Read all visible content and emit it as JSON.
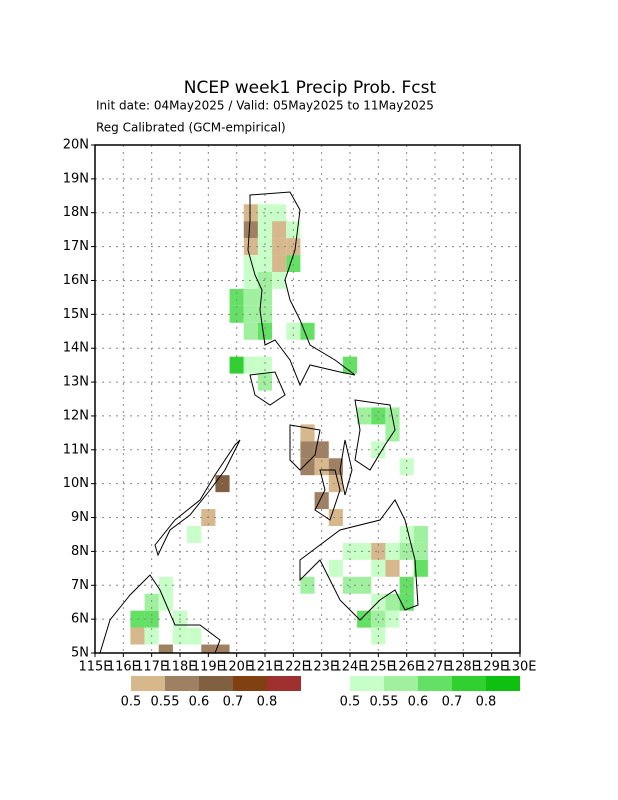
{
  "chart_data": {
    "type": "grid-map",
    "title": "NCEP week1 Precip Prob. Fcst",
    "subtitle": "Init date: 04May2025 / Valid: 05May2025 to 11May2025",
    "subtitle2": "Reg Calibrated (GCM-empirical)",
    "xlim": [
      115,
      130
    ],
    "ylim": [
      5,
      20
    ],
    "cell_size": 0.5,
    "grid": true,
    "xticks": [
      {
        "value": 115,
        "label": "115E"
      },
      {
        "value": 116,
        "label": "116E"
      },
      {
        "value": 117,
        "label": "117E"
      },
      {
        "value": 118,
        "label": "118E"
      },
      {
        "value": 119,
        "label": "119E"
      },
      {
        "value": 120,
        "label": "120E"
      },
      {
        "value": 121,
        "label": "121E"
      },
      {
        "value": 122,
        "label": "122E"
      },
      {
        "value": 123,
        "label": "123E"
      },
      {
        "value": 124,
        "label": "124E"
      },
      {
        "value": 125,
        "label": "125E"
      },
      {
        "value": 126,
        "label": "126E"
      },
      {
        "value": 127,
        "label": "127E"
      },
      {
        "value": 128,
        "label": "128E"
      },
      {
        "value": 129,
        "label": "129E"
      },
      {
        "value": 130,
        "label": "130E"
      }
    ],
    "yticks": [
      {
        "value": 5,
        "label": "5N"
      },
      {
        "value": 6,
        "label": "6N"
      },
      {
        "value": 7,
        "label": "7N"
      },
      {
        "value": 8,
        "label": "8N"
      },
      {
        "value": 9,
        "label": "9N"
      },
      {
        "value": 10,
        "label": "10N"
      },
      {
        "value": 11,
        "label": "11N"
      },
      {
        "value": 12,
        "label": "12N"
      },
      {
        "value": 13,
        "label": "13N"
      },
      {
        "value": 14,
        "label": "14N"
      },
      {
        "value": 15,
        "label": "15N"
      },
      {
        "value": 16,
        "label": "16N"
      },
      {
        "value": 17,
        "label": "17N"
      },
      {
        "value": 18,
        "label": "18N"
      },
      {
        "value": 19,
        "label": "19N"
      },
      {
        "value": 20,
        "label": "20N"
      }
    ],
    "legend": [
      {
        "colors": [
          "#d6b88c",
          "#a08062",
          "#806040",
          "#804012",
          "#a03030"
        ],
        "labels": [
          "0.5",
          "0.55",
          "0.6",
          "0.7",
          "0.8"
        ]
      },
      {
        "colors": [
          "#c8ffc8",
          "#a0f0a0",
          "#64e064",
          "#30d030",
          "#10c010"
        ],
        "labels": [
          "0.5",
          "0.55",
          "0.6",
          "0.7",
          "0.8"
        ]
      }
    ],
    "cells": [
      {
        "lon": 120.25,
        "lat": 17.75,
        "color": "#d6b88c"
      },
      {
        "lon": 120.75,
        "lat": 17.75,
        "color": "#c8ffc8"
      },
      {
        "lon": 121.25,
        "lat": 17.75,
        "color": "#c8ffc8"
      },
      {
        "lon": 120.25,
        "lat": 17.25,
        "color": "#a08062"
      },
      {
        "lon": 120.75,
        "lat": 17.25,
        "color": "#c8ffc8"
      },
      {
        "lon": 121.25,
        "lat": 17.25,
        "color": "#d6b88c"
      },
      {
        "lon": 121.75,
        "lat": 17.25,
        "color": "#c8ffc8"
      },
      {
        "lon": 120.25,
        "lat": 16.75,
        "color": "#d6b88c"
      },
      {
        "lon": 120.75,
        "lat": 16.75,
        "color": "#c8ffc8"
      },
      {
        "lon": 121.25,
        "lat": 16.75,
        "color": "#d6b88c"
      },
      {
        "lon": 121.75,
        "lat": 16.75,
        "color": "#d6b88c"
      },
      {
        "lon": 120.25,
        "lat": 16.25,
        "color": "#c8ffc8"
      },
      {
        "lon": 120.75,
        "lat": 16.25,
        "color": "#c8ffc8"
      },
      {
        "lon": 121.25,
        "lat": 16.25,
        "color": "#d6b88c"
      },
      {
        "lon": 121.75,
        "lat": 16.25,
        "color": "#64e064"
      },
      {
        "lon": 120.25,
        "lat": 15.75,
        "color": "#c8ffc8"
      },
      {
        "lon": 120.75,
        "lat": 15.75,
        "color": "#a0f0a0"
      },
      {
        "lon": 121.25,
        "lat": 15.75,
        "color": "#c8ffc8"
      },
      {
        "lon": 119.75,
        "lat": 15.25,
        "color": "#64e064"
      },
      {
        "lon": 120.25,
        "lat": 15.25,
        "color": "#a0f0a0"
      },
      {
        "lon": 120.75,
        "lat": 15.25,
        "color": "#a0f0a0"
      },
      {
        "lon": 119.75,
        "lat": 14.75,
        "color": "#64e064"
      },
      {
        "lon": 120.25,
        "lat": 14.75,
        "color": "#a0f0a0"
      },
      {
        "lon": 120.75,
        "lat": 14.75,
        "color": "#a0f0a0"
      },
      {
        "lon": 120.25,
        "lat": 14.25,
        "color": "#a0f0a0"
      },
      {
        "lon": 120.75,
        "lat": 14.25,
        "color": "#64e064"
      },
      {
        "lon": 121.75,
        "lat": 14.25,
        "color": "#c8ffc8"
      },
      {
        "lon": 122.25,
        "lat": 14.25,
        "color": "#64e064"
      },
      {
        "lon": 119.75,
        "lat": 13.25,
        "color": "#30d030"
      },
      {
        "lon": 120.25,
        "lat": 13.25,
        "color": "#c8ffc8"
      },
      {
        "lon": 120.75,
        "lat": 13.25,
        "color": "#c8ffc8"
      },
      {
        "lon": 123.75,
        "lat": 13.25,
        "color": "#64e064"
      },
      {
        "lon": 120.75,
        "lat": 12.75,
        "color": "#a0f0a0"
      },
      {
        "lon": 122.25,
        "lat": 11.25,
        "color": "#d6b88c"
      },
      {
        "lon": 122.25,
        "lat": 10.75,
        "color": "#a08062"
      },
      {
        "lon": 122.75,
        "lat": 10.75,
        "color": "#a08062"
      },
      {
        "lon": 122.25,
        "lat": 10.25,
        "color": "#a08062"
      },
      {
        "lon": 122.75,
        "lat": 10.25,
        "color": "#d6b88c"
      },
      {
        "lon": 123.25,
        "lat": 10.25,
        "color": "#a08062"
      },
      {
        "lon": 123.25,
        "lat": 9.75,
        "color": "#d6b88c"
      },
      {
        "lon": 122.75,
        "lat": 9.25,
        "color": "#a08062"
      },
      {
        "lon": 123.25,
        "lat": 8.75,
        "color": "#d6b88c"
      },
      {
        "lon": 124.25,
        "lat": 11.75,
        "color": "#a0f0a0"
      },
      {
        "lon": 124.75,
        "lat": 11.75,
        "color": "#64e064"
      },
      {
        "lon": 125.25,
        "lat": 11.75,
        "color": "#a0f0a0"
      },
      {
        "lon": 125.25,
        "lat": 11.25,
        "color": "#a0f0a0"
      },
      {
        "lon": 124.75,
        "lat": 10.75,
        "color": "#c8ffc8"
      },
      {
        "lon": 125.75,
        "lat": 10.25,
        "color": "#c8ffc8"
      },
      {
        "lon": 119.25,
        "lat": 9.75,
        "color": "#806040"
      },
      {
        "lon": 118.75,
        "lat": 8.75,
        "color": "#d6b88c"
      },
      {
        "lon": 118.25,
        "lat": 8.25,
        "color": "#c8ffc8"
      },
      {
        "lon": 123.75,
        "lat": 7.75,
        "color": "#c8ffc8"
      },
      {
        "lon": 124.25,
        "lat": 7.75,
        "color": "#c8ffc8"
      },
      {
        "lon": 124.75,
        "lat": 7.75,
        "color": "#d6b88c"
      },
      {
        "lon": 125.25,
        "lat": 7.75,
        "color": "#c8ffc8"
      },
      {
        "lon": 125.75,
        "lat": 7.75,
        "color": "#a0f0a0"
      },
      {
        "lon": 123.25,
        "lat": 7.25,
        "color": "#c8ffc8"
      },
      {
        "lon": 124.75,
        "lat": 7.25,
        "color": "#c8ffc8"
      },
      {
        "lon": 125.25,
        "lat": 7.25,
        "color": "#d6b88c"
      },
      {
        "lon": 126.25,
        "lat": 7.25,
        "color": "#64e064"
      },
      {
        "lon": 126.25,
        "lat": 7.75,
        "color": "#a0f0a0"
      },
      {
        "lon": 125.75,
        "lat": 8.25,
        "color": "#c8ffc8"
      },
      {
        "lon": 126.25,
        "lat": 8.25,
        "color": "#a0f0a0"
      },
      {
        "lon": 122.25,
        "lat": 6.75,
        "color": "#a0f0a0"
      },
      {
        "lon": 123.75,
        "lat": 6.75,
        "color": "#a0f0a0"
      },
      {
        "lon": 124.25,
        "lat": 6.75,
        "color": "#a0f0a0"
      },
      {
        "lon": 125.75,
        "lat": 6.75,
        "color": "#64e064"
      },
      {
        "lon": 124.75,
        "lat": 6.25,
        "color": "#c8ffc8"
      },
      {
        "lon": 125.25,
        "lat": 6.25,
        "color": "#a0f0a0"
      },
      {
        "lon": 125.75,
        "lat": 6.25,
        "color": "#64e064"
      },
      {
        "lon": 124.25,
        "lat": 5.75,
        "color": "#64e064"
      },
      {
        "lon": 124.75,
        "lat": 5.75,
        "color": "#a0f0a0"
      },
      {
        "lon": 125.25,
        "lat": 5.75,
        "color": "#c8ffc8"
      },
      {
        "lon": 124.75,
        "lat": 5.25,
        "color": "#c8ffc8"
      },
      {
        "lon": 116.25,
        "lat": 5.75,
        "color": "#64e064"
      },
      {
        "lon": 116.75,
        "lat": 5.75,
        "color": "#64e064"
      },
      {
        "lon": 116.75,
        "lat": 6.25,
        "color": "#a0f0a0"
      },
      {
        "lon": 117.25,
        "lat": 6.75,
        "color": "#c8ffc8"
      },
      {
        "lon": 117.25,
        "lat": 6.25,
        "color": "#c8ffc8"
      },
      {
        "lon": 117.75,
        "lat": 5.75,
        "color": "#c8ffc8"
      },
      {
        "lon": 117.75,
        "lat": 5.25,
        "color": "#c8ffc8"
      },
      {
        "lon": 118.25,
        "lat": 5.25,
        "color": "#c8ffc8"
      },
      {
        "lon": 116.25,
        "lat": 5.25,
        "color": "#d6b88c"
      },
      {
        "lon": 116.75,
        "lat": 5.25,
        "color": "#c8ffc8"
      },
      {
        "lon": 117.25,
        "lat": 4.75,
        "color": "#a08062"
      },
      {
        "lon": 118.75,
        "lat": 4.75,
        "color": "#a08062"
      },
      {
        "lon": 119.25,
        "lat": 4.75,
        "color": "#a08062"
      }
    ]
  }
}
